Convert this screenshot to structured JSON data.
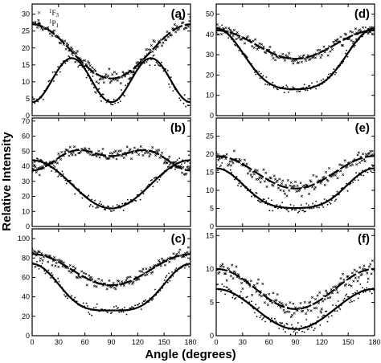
{
  "chart_data": {
    "type": "scatter",
    "xlabel": "Angle (degrees)",
    "ylabel": "Relative Intensity",
    "xlim": [
      0,
      180
    ],
    "xticks": [
      "0",
      "30",
      "60",
      "90",
      "120",
      "150",
      "180"
    ],
    "legend": {
      "placement": "top-left of panel (a)",
      "entries": [
        {
          "marker": "×",
          "label_sup": "1",
          "label_main": "F",
          "label_sub": "3"
        },
        {
          "marker": "●",
          "label_sup": "1",
          "label_main": "P",
          "label_sub": "1"
        }
      ]
    },
    "panels": [
      {
        "label": "(a)",
        "ylim": [
          0,
          33
        ],
        "yticks": [
          "0",
          "5",
          "10",
          "15",
          "20",
          "25",
          "30"
        ],
        "F3_fit": {
          "mean": 19,
          "amp": 8,
          "harmonics": [
            [
              2,
              90,
              -1
            ]
          ]
        },
        "P1_fit": {
          "mean": 10.5,
          "amp": 6.5,
          "harmonics": [
            [
              4,
              45,
              1
            ]
          ]
        },
        "noise": {
          "F3": 3,
          "P1": 2.5
        }
      },
      {
        "label": "(b)",
        "ylim": [
          0,
          72
        ],
        "yticks": [
          "0",
          "10",
          "20",
          "30",
          "40",
          "50",
          "60",
          "70"
        ],
        "F3_fit": {
          "mean": 46,
          "amp": 8,
          "harmonics": [
            [
              2,
              0,
              -0.6
            ],
            [
              4,
              45,
              0.5
            ]
          ]
        },
        "P1_fit": {
          "mean": 28,
          "amp": 16,
          "harmonics": [
            [
              2,
              0,
              1
            ]
          ]
        },
        "noise": {
          "F3": 5,
          "P1": 5
        }
      },
      {
        "label": "(c)",
        "ylim": [
          0,
          110
        ],
        "yticks": [
          "0",
          "20",
          "40",
          "60",
          "80",
          "100"
        ],
        "F3_fit": {
          "mean": 68,
          "amp": 16,
          "harmonics": [
            [
              2,
              0,
              1
            ]
          ]
        },
        "P1_fit": {
          "mean": 44,
          "amp": 24,
          "harmonics": [
            [
              2,
              0,
              1
            ],
            [
              4,
              0,
              0.25
            ]
          ]
        },
        "noise": {
          "F3": 8,
          "P1": 7
        }
      },
      {
        "label": "(d)",
        "ylim": [
          0,
          55
        ],
        "yticks": [
          "0",
          "10",
          "20",
          "30",
          "40",
          "50"
        ],
        "F3_fit": {
          "mean": 35,
          "amp": 7,
          "harmonics": [
            [
              2,
              0,
              1
            ]
          ]
        },
        "P1_fit": {
          "mean": 25,
          "amp": 15,
          "harmonics": [
            [
              2,
              0,
              1
            ],
            [
              4,
              0,
              0.2
            ]
          ]
        },
        "noise": {
          "F3": 4,
          "P1": 3
        }
      },
      {
        "label": "(e)",
        "ylim": [
          0,
          30
        ],
        "yticks": [
          "0",
          "5",
          "10",
          "15",
          "20",
          "25"
        ],
        "F3_fit": {
          "mean": 15,
          "amp": 4.5,
          "harmonics": [
            [
              2,
              0,
              1
            ]
          ]
        },
        "P1_fit": {
          "mean": 9.5,
          "amp": 5.5,
          "harmonics": [
            [
              2,
              0,
              1
            ],
            [
              4,
              0,
              0.2
            ]
          ]
        },
        "noise": {
          "F3": 3,
          "P1": 2
        }
      },
      {
        "label": "(f)",
        "ylim": [
          0,
          16
        ],
        "yticks": [
          "0",
          "5",
          "10",
          "15"
        ],
        "F3_fit": {
          "mean": 7,
          "amp": 3,
          "harmonics": [
            [
              2,
              0,
              1
            ]
          ]
        },
        "P1_fit": {
          "mean": 4,
          "amp": 3,
          "harmonics": [
            [
              2,
              0,
              1
            ]
          ]
        },
        "noise": {
          "F3": 2,
          "P1": 1.5
        }
      }
    ]
  }
}
